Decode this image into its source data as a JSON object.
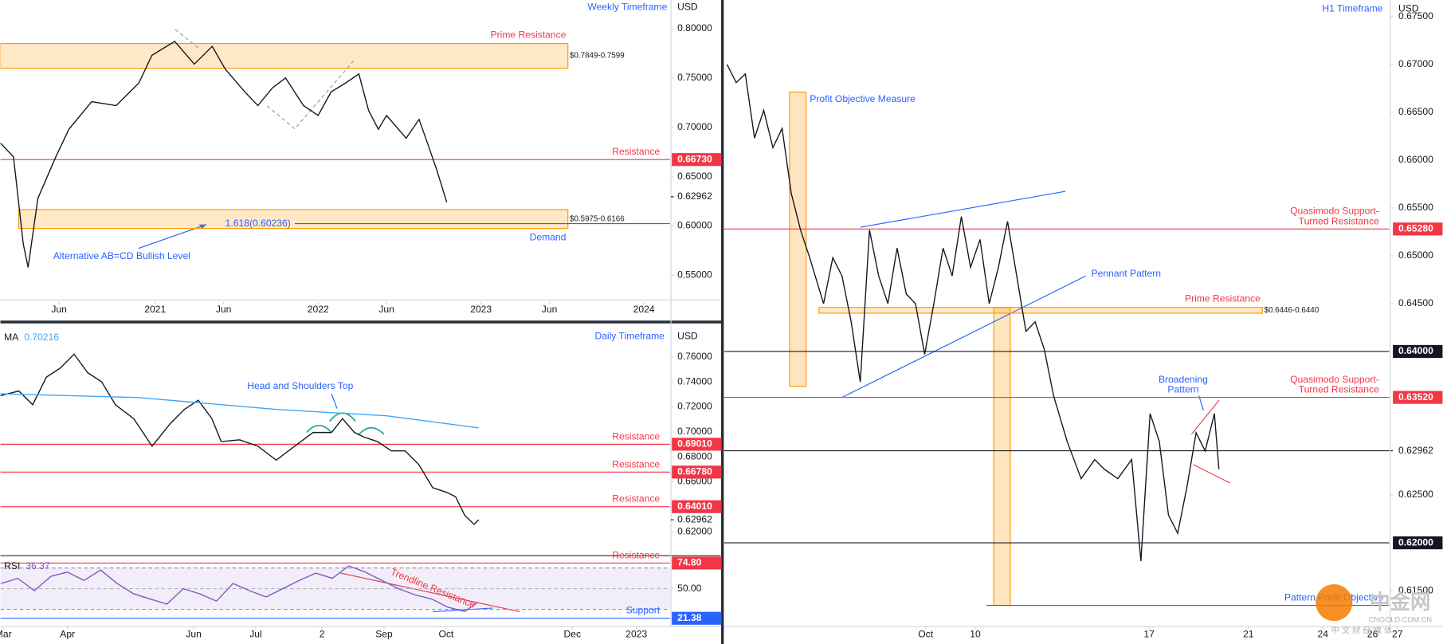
{
  "chart_data": [
    {
      "type": "line",
      "title": "Weekly Timeframe",
      "currency": "USD",
      "series": [
        {
          "color": "#131722",
          "x": [
            2020.05,
            2020.13,
            2020.19,
            2020.22,
            2020.28,
            2020.39,
            2020.47,
            2020.61,
            2020.76,
            2020.9,
            2020.98,
            2021.12,
            2021.24,
            2021.35,
            2021.43,
            2021.55,
            2021.63,
            2021.72,
            2021.8,
            2021.91,
            2022.0,
            2022.08,
            2022.17,
            2022.25,
            2022.31,
            2022.37,
            2022.42,
            2022.54,
            2022.62,
            2022.68,
            2022.73,
            2022.79
          ],
          "values": [
            0.684,
            0.67,
            0.582,
            0.558,
            0.628,
            0.67,
            0.698,
            0.726,
            0.722,
            0.745,
            0.773,
            0.787,
            0.764,
            0.782,
            0.759,
            0.736,
            0.722,
            0.74,
            0.75,
            0.722,
            0.712,
            0.736,
            0.745,
            0.754,
            0.717,
            0.698,
            0.712,
            0.689,
            0.708,
            0.68,
            0.656,
            0.624
          ]
        }
      ],
      "xlim": [
        2020.05,
        2024.16
      ],
      "ylim": [
        0.526,
        0.829
      ],
      "xticks": [
        {
          "value": 2020.41,
          "label": "Jun"
        },
        2021,
        {
          "value": 2021.42,
          "label": "Jun"
        },
        2022,
        {
          "value": 2022.42,
          "label": "Jun"
        },
        2023,
        {
          "value": 2023.42,
          "label": "Jun"
        },
        2024
      ],
      "yticks": [
        {
          "value": 0.8,
          "label": "0.80000"
        },
        {
          "value": 0.75,
          "label": "0.75000"
        },
        {
          "value": 0.7,
          "label": "0.70000"
        },
        {
          "value": 0.65,
          "label": "0.65000"
        },
        {
          "value": 0.6,
          "label": "0.60000"
        },
        {
          "value": 0.55,
          "label": "0.55000"
        }
      ],
      "zones": [
        {
          "from": 0.7599,
          "to": 0.7849,
          "label": "$0.7849-0.7599",
          "text": "Prime Resistance"
        },
        {
          "from": 0.5975,
          "to": 0.6166,
          "label": "$0.5975-0.6166",
          "text": "Demand"
        }
      ],
      "levels": [
        {
          "value": 0.6673,
          "label": "0.66730",
          "color": "#f23645",
          "text": [
            "Resistance"
          ]
        }
      ],
      "fib": {
        "value": 0.60236,
        "label": "1.618(0.60236)"
      },
      "last": {
        "value": 0.62962,
        "label": "0.62962"
      },
      "annotations": [
        "Alternative AB=CD Bullish Level"
      ]
    },
    {
      "type": "line",
      "title": "Daily Timeframe",
      "currency": "USD",
      "series": [
        {
          "color": "#131722",
          "x": [
            57.6,
            66.5,
            73.2,
            79.8,
            86.5,
            93.2,
            99.8,
            106.5,
            113.2,
            122.0,
            130.9,
            139.8,
            146.5,
            153.2,
            159.8,
            164.3,
            173.2,
            182.0,
            190.9,
            199.8,
            208.7,
            217.6,
            222.9,
            228.7,
            233.2,
            239.8,
            246.5,
            253.2,
            259.8,
            266.5,
            273.2,
            277.6,
            282.0,
            286.5,
            288.7
          ],
          "values": [
            0.729,
            0.7327,
            0.7217,
            0.7438,
            0.7511,
            0.7622,
            0.7474,
            0.7401,
            0.7217,
            0.7106,
            0.6885,
            0.7069,
            0.718,
            0.7253,
            0.7106,
            0.6922,
            0.6936,
            0.6885,
            0.6774,
            0.6885,
            0.6995,
            0.6995,
            0.7106,
            0.6995,
            0.6959,
            0.6922,
            0.6848,
            0.6848,
            0.6738,
            0.6553,
            0.6516,
            0.648,
            0.6332,
            0.6259,
            0.6296
          ]
        },
        {
          "name": "MA",
          "last": 0.70216,
          "color": "#42a5f5",
          "x": [
            57.6,
            124.3,
            191.0,
            244.3,
            288.7
          ],
          "values": [
            0.7305,
            0.7275,
            0.718,
            0.7128,
            0.7032
          ]
        }
      ],
      "xlim": [
        57.6,
        381.2
      ],
      "ylim": [
        0.6016,
        0.7865
      ],
      "xticks": [
        {
          "value": 59,
          "label": "Mar"
        },
        {
          "value": 90,
          "label": "Apr"
        },
        {
          "value": 151,
          "label": "Jun"
        },
        {
          "value": 181,
          "label": "Jul"
        },
        {
          "value": 213,
          "label": "2"
        },
        {
          "value": 243,
          "label": "Sep"
        },
        {
          "value": 273,
          "label": "Oct"
        },
        {
          "value": 334,
          "label": "Dec"
        },
        {
          "value": 365,
          "label": "2023"
        }
      ],
      "yticks": [
        {
          "value": 0.76,
          "label": "0.76000"
        },
        {
          "value": 0.74,
          "label": "0.74000"
        },
        {
          "value": 0.72,
          "label": "0.72000"
        },
        {
          "value": 0.7,
          "label": "0.70000"
        },
        {
          "value": 0.68,
          "label": "0.68000"
        },
        {
          "value": 0.66,
          "label": "0.66000"
        },
        {
          "value": 0.62,
          "label": "0.62000"
        }
      ],
      "levels": [
        {
          "value": 0.6901,
          "label": "0.69010",
          "color": "#f23645",
          "text": [
            "Resistance"
          ]
        },
        {
          "value": 0.6678,
          "label": "0.66780",
          "color": "#f23645",
          "text": [
            "Resistance"
          ]
        },
        {
          "value": 0.6401,
          "label": "0.64010",
          "color": "#f23645",
          "text": [
            "Resistance"
          ]
        }
      ],
      "last": {
        "value": 0.62962,
        "label": "0.62962"
      },
      "annotations": [
        "Head and Shoulders Top"
      ]
    },
    {
      "type": "line",
      "series": [
        {
          "name": "RSI",
          "last": 36.37,
          "color": "#7e57c2",
          "x": [
            58,
            66,
            74,
            82,
            90,
            98,
            106,
            114,
            122,
            130,
            138,
            146,
            154,
            162,
            170,
            178,
            186,
            194,
            202,
            210,
            218,
            226,
            234,
            242,
            250,
            258,
            266,
            274,
            282,
            288
          ],
          "values": [
            55,
            60,
            48,
            62,
            66,
            58,
            68,
            55,
            45,
            40,
            35,
            50,
            45,
            38,
            55,
            48,
            42,
            50,
            58,
            65,
            60,
            72,
            66,
            58,
            50,
            44,
            40,
            32,
            28,
            36.37
          ]
        }
      ],
      "xlim": [
        57.6,
        381.2
      ],
      "ylim": [
        14.3,
        81
      ],
      "yticks": [
        {
          "value": 50,
          "label": "50.00"
        }
      ],
      "bands": [
        30,
        70
      ],
      "levels": [
        {
          "value": 74.8,
          "label": "74.80",
          "color": "#f23645",
          "text": [
            "Resistance"
          ]
        },
        {
          "value": 21.38,
          "label": "21.38",
          "color": "#2962ff",
          "text": [
            "Support"
          ]
        }
      ],
      "annotations": [
        "Trendline Resistance"
      ]
    },
    {
      "type": "line",
      "title": "H1 Timeframe",
      "currency": "USD",
      "series": [
        {
          "color": "#131722",
          "x": [
            0.0,
            0.37,
            0.74,
            1.11,
            1.48,
            1.85,
            2.22,
            2.59,
            2.96,
            3.33,
            3.89,
            4.26,
            4.63,
            5.0,
            5.37,
            5.74,
            6.11,
            6.48,
            6.85,
            7.22,
            7.59,
            7.96,
            8.33,
            8.7,
            9.07,
            9.44,
            9.81,
            10.19,
            10.56,
            10.93,
            11.3,
            11.67,
            12.04,
            12.41,
            12.78,
            13.15,
            13.7,
            14.26,
            14.81,
            15.19,
            15.74,
            16.3,
            16.67,
            17.04,
            17.41,
            17.78,
            18.15,
            18.52,
            18.89,
            19.26,
            19.63,
            19.81
          ],
          "values": [
            0.67,
            0.6681,
            0.669,
            0.6623,
            0.6652,
            0.6613,
            0.6633,
            0.6565,
            0.6527,
            0.6498,
            0.645,
            0.6498,
            0.6479,
            0.6431,
            0.6368,
            0.6527,
            0.6479,
            0.645,
            0.6508,
            0.646,
            0.645,
            0.6397,
            0.645,
            0.6508,
            0.6479,
            0.6541,
            0.6488,
            0.6517,
            0.645,
            0.6488,
            0.6536,
            0.6479,
            0.6421,
            0.6431,
            0.6402,
            0.6354,
            0.6306,
            0.6267,
            0.6287,
            0.6277,
            0.6267,
            0.6287,
            0.6181,
            0.6335,
            0.6306,
            0.6229,
            0.621,
            0.6258,
            0.6315,
            0.6296,
            0.6335,
            0.6277
          ]
        }
      ],
      "xlim": [
        -0.11,
        26.67
      ],
      "ylim": [
        0.61135,
        0.67673
      ],
      "xticks": [
        21,
        26,
        {
          "value": 8,
          "label": "Oct"
        },
        10,
        17,
        24,
        27
      ],
      "yticks": [
        {
          "value": 0.675,
          "label": "0.67500"
        },
        {
          "value": 0.67,
          "label": "0.67000"
        },
        {
          "value": 0.665,
          "label": "0.66500"
        },
        {
          "value": 0.66,
          "label": "0.66000"
        },
        {
          "value": 0.655,
          "label": "0.65500"
        },
        {
          "value": 0.65,
          "label": "0.65000"
        },
        {
          "value": 0.645,
          "label": "0.64500"
        },
        {
          "value": 0.625,
          "label": "0.62500"
        },
        {
          "value": 0.615,
          "label": "0.61500"
        }
      ],
      "zones": [
        {
          "from": 0.644,
          "to": 0.6446,
          "label": "$0.6446-0.6440",
          "text": "Prime Resistance"
        }
      ],
      "levels": [
        {
          "value": 0.6528,
          "label": "0.65280",
          "color": "#f23645",
          "text": [
            "Quasimodo Support-",
            "Turned Resistance"
          ]
        },
        {
          "value": 0.64,
          "label": "0.64000",
          "color": "#131722"
        },
        {
          "value": 0.6352,
          "label": "0.63520",
          "color": "#f23645",
          "text": [
            "Quasimodo Support-",
            "Turned Resistance"
          ]
        },
        {
          "value": 0.62,
          "label": "0.62000",
          "color": "#131722"
        }
      ],
      "last": {
        "value": 0.62962,
        "label": "0.62962",
        "line": true
      },
      "annotations": [
        "Profit Objective Measure",
        "Pennant Pattern",
        "Broadening",
        "Pattern",
        "Pattern Profit Objective"
      ]
    }
  ],
  "watermark": {
    "name": "中金网",
    "url": "CNGOLD.COM.CN",
    "tagline": "中 文 财 经 媒 体"
  }
}
